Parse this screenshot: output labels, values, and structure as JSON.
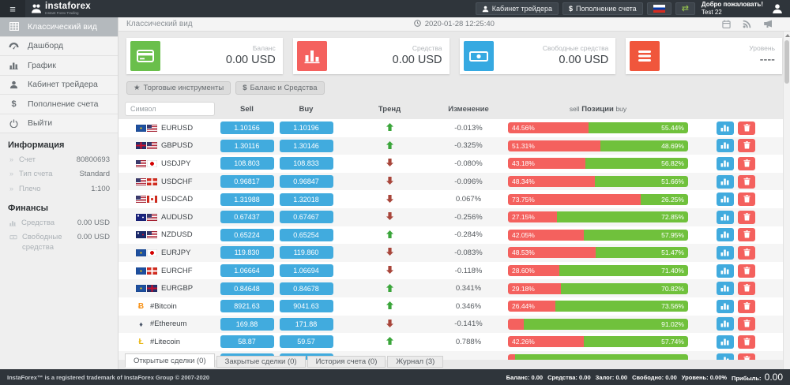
{
  "header": {
    "logo_title": "instaforex",
    "logo_subtitle": "Instant Forex Trading",
    "trader_cabinet": "Кабинет трейдера",
    "deposit": "Пополнение счета",
    "welcome_line1": "Добро пожаловать!",
    "welcome_line2": "Test 22"
  },
  "sidebar": {
    "menu": [
      {
        "label": "Классический вид",
        "icon": "table-icon",
        "active": true
      },
      {
        "label": "Дашборд",
        "icon": "dashboard-icon",
        "active": false
      },
      {
        "label": "График",
        "icon": "chart-icon",
        "active": false
      },
      {
        "label": "Кабинет трейдера",
        "icon": "user-icon",
        "active": false
      },
      {
        "label": "Пополнение счета",
        "icon": "dollar-icon",
        "active": false
      },
      {
        "label": "Выйти",
        "icon": "power-icon",
        "active": false
      }
    ],
    "info": {
      "title": "Информация",
      "rows": [
        {
          "label": "Счет",
          "value": "80800693"
        },
        {
          "label": "Тип счета",
          "value": "Standard"
        },
        {
          "label": "Плечо",
          "value": "1:100"
        }
      ]
    },
    "finance": {
      "title": "Финансы",
      "rows": [
        {
          "label": "Средства",
          "value": "0.00 USD",
          "icon": "chart-icon"
        },
        {
          "label": "Свободные средства",
          "value": "0.00 USD",
          "icon": "banknote-icon"
        }
      ]
    }
  },
  "content_header": {
    "title": "Классический вид",
    "datetime": "2020-01-28 12:25:40"
  },
  "cards": [
    {
      "label": "Баланс",
      "value": "0.00 USD",
      "icon": "credit-card-icon",
      "color": "#6abf4b"
    },
    {
      "label": "Средства",
      "value": "0.00 USD",
      "icon": "bar-chart-icon",
      "color": "#f4615e"
    },
    {
      "label": "Свободные средства",
      "value": "0.00 USD",
      "icon": "banknote-icon",
      "color": "#36a9e1"
    },
    {
      "label": "Уровень",
      "value": "----",
      "icon": "list-icon",
      "color": "#f0563c"
    }
  ],
  "toolbar": {
    "instruments": "Торговые инструменты",
    "balance": "Баланс и Средства"
  },
  "table": {
    "search_placeholder": "Символ",
    "headers": {
      "sell": "Sell",
      "buy": "Buy",
      "trend": "Тренд",
      "change": "Изменение",
      "positions_prefix": "sell",
      "positions_label": "Позиции",
      "positions_suffix": "buy"
    },
    "rows": [
      {
        "symbol": "EURUSD",
        "flags": [
          "eu",
          "us"
        ],
        "sell": "1.10166",
        "buy": "1.10196",
        "trend": "up",
        "change": "-0.013%",
        "sell_pct": 44.56,
        "buy_pct": 55.44,
        "sell_label": "44.56%",
        "buy_label": "55.44%"
      },
      {
        "symbol": "GBPUSD",
        "flags": [
          "gb",
          "us"
        ],
        "sell": "1.30116",
        "buy": "1.30146",
        "trend": "up",
        "change": "-0.325%",
        "sell_pct": 51.31,
        "buy_pct": 48.69,
        "sell_label": "51.31%",
        "buy_label": "48.69%"
      },
      {
        "symbol": "USDJPY",
        "flags": [
          "us",
          "jp"
        ],
        "sell": "108.803",
        "buy": "108.833",
        "trend": "down",
        "change": "-0.080%",
        "sell_pct": 43.18,
        "buy_pct": 56.82,
        "sell_label": "43.18%",
        "buy_label": "56.82%"
      },
      {
        "symbol": "USDCHF",
        "flags": [
          "us",
          "ch"
        ],
        "sell": "0.96817",
        "buy": "0.96847",
        "trend": "down",
        "change": "-0.096%",
        "sell_pct": 48.34,
        "buy_pct": 51.66,
        "sell_label": "48.34%",
        "buy_label": "51.66%"
      },
      {
        "symbol": "USDCAD",
        "flags": [
          "us",
          "ca"
        ],
        "sell": "1.31988",
        "buy": "1.32018",
        "trend": "down",
        "change": "0.067%",
        "sell_pct": 73.75,
        "buy_pct": 26.25,
        "sell_label": "73.75%",
        "buy_label": "26.25%"
      },
      {
        "symbol": "AUDUSD",
        "flags": [
          "au",
          "us"
        ],
        "sell": "0.67437",
        "buy": "0.67467",
        "trend": "down",
        "change": "-0.256%",
        "sell_pct": 27.15,
        "buy_pct": 72.85,
        "sell_label": "27.15%",
        "buy_label": "72.85%"
      },
      {
        "symbol": "NZDUSD",
        "flags": [
          "nz",
          "us"
        ],
        "sell": "0.65224",
        "buy": "0.65254",
        "trend": "up",
        "change": "-0.284%",
        "sell_pct": 42.05,
        "buy_pct": 57.95,
        "sell_label": "42.05%",
        "buy_label": "57.95%"
      },
      {
        "symbol": "EURJPY",
        "flags": [
          "eu",
          "jp"
        ],
        "sell": "119.830",
        "buy": "119.860",
        "trend": "down",
        "change": "-0.083%",
        "sell_pct": 48.53,
        "buy_pct": 51.47,
        "sell_label": "48.53%",
        "buy_label": "51.47%"
      },
      {
        "symbol": "EURCHF",
        "flags": [
          "eu",
          "ch"
        ],
        "sell": "1.06664",
        "buy": "1.06694",
        "trend": "down",
        "change": "-0.118%",
        "sell_pct": 28.6,
        "buy_pct": 71.4,
        "sell_label": "28.60%",
        "buy_label": "71.40%"
      },
      {
        "symbol": "EURGBP",
        "flags": [
          "eu",
          "gb"
        ],
        "sell": "0.84648",
        "buy": "0.84678",
        "trend": "up",
        "change": "0.341%",
        "sell_pct": 29.18,
        "buy_pct": 70.82,
        "sell_label": "29.18%",
        "buy_label": "70.82%"
      },
      {
        "symbol": "#Bitcoin",
        "crypto": "bitcoin",
        "sell": "8921.63",
        "buy": "9041.63",
        "trend": "up",
        "change": "0.346%",
        "sell_pct": 26.44,
        "buy_pct": 73.56,
        "sell_label": "26.44%",
        "buy_label": "73.56%"
      },
      {
        "symbol": "#Ethereum",
        "crypto": "ethereum",
        "sell": "169.88",
        "buy": "171.88",
        "trend": "down",
        "change": "-0.141%",
        "sell_pct": 8.98,
        "buy_pct": 91.02,
        "sell_label": "",
        "buy_label": "91.02%"
      },
      {
        "symbol": "#Litecoin",
        "crypto": "litecoin",
        "sell": "58.87",
        "buy": "59.57",
        "trend": "up",
        "change": "0.788%",
        "sell_pct": 42.26,
        "buy_pct": 57.74,
        "sell_label": "42.26%",
        "buy_label": "57.74%"
      },
      {
        "symbol": "",
        "partial": true,
        "sell": "",
        "buy": "",
        "trend": "",
        "change": "",
        "sell_pct": 4,
        "buy_pct": 96,
        "sell_label": "",
        "buy_label": ""
      }
    ]
  },
  "tabs": [
    {
      "label": "Открытые сделки (0)",
      "active": true
    },
    {
      "label": "Закрытые сделки (0)",
      "active": false
    },
    {
      "label": "История счета (0)",
      "active": false
    },
    {
      "label": "Журнал (3)",
      "active": false
    }
  ],
  "footer": {
    "copyright": "InstaForex™ is a registered trademark of InstaForex Group © 2007-2020",
    "stats": [
      {
        "label": "Баланс:",
        "value": "0.00"
      },
      {
        "label": "Средства:",
        "value": "0.00"
      },
      {
        "label": "Залог:",
        "value": "0.00"
      },
      {
        "label": "Свободно:",
        "value": "0.00"
      },
      {
        "label": "Уровень:",
        "value": "0.00%"
      },
      {
        "label": "Прибыль:",
        "value": "0.00",
        "big": true
      }
    ]
  }
}
